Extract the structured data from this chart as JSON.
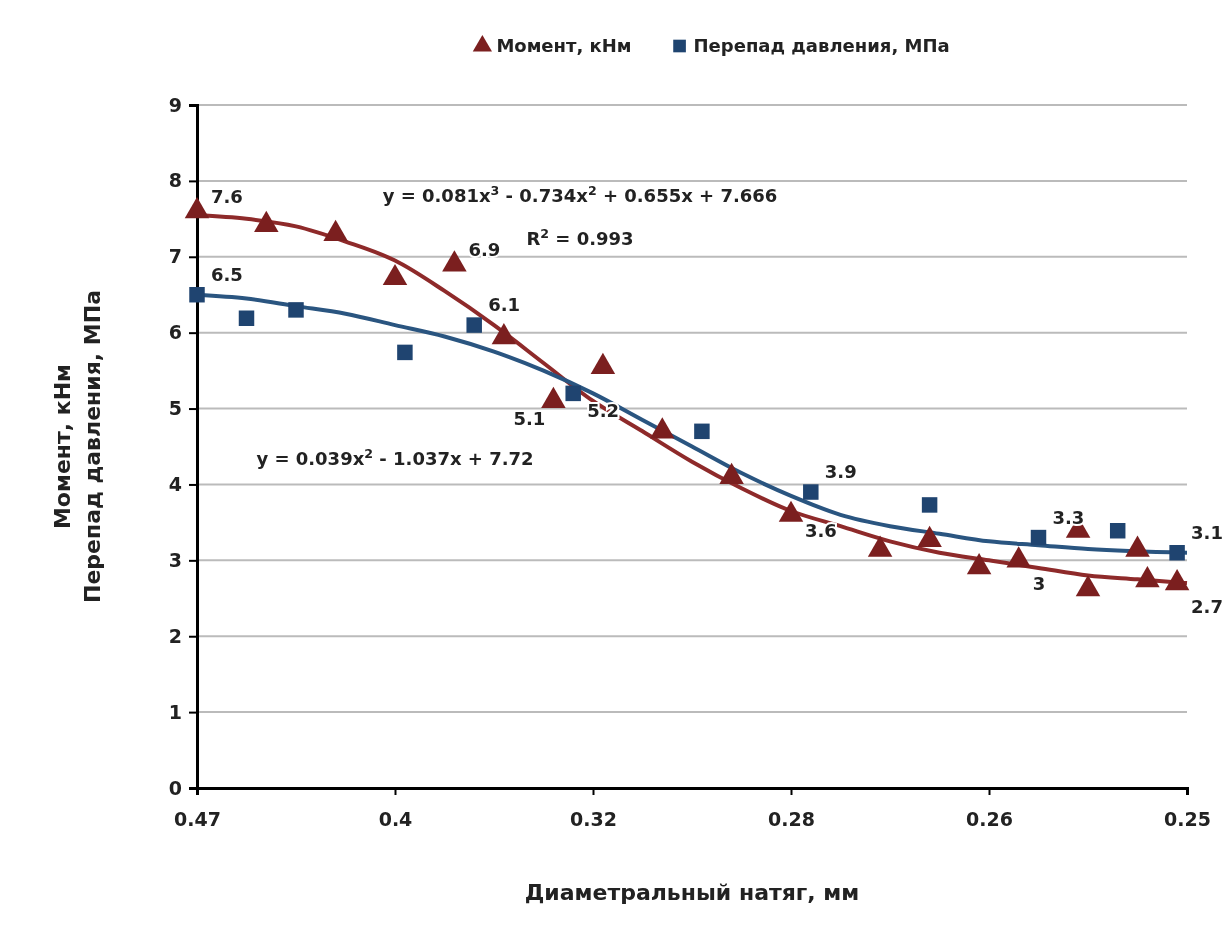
{
  "chart_data": {
    "type": "scatter",
    "categories": [
      "0.47",
      null,
      null,
      null,
      null,
      null,
      null,
      null,
      null,
      null,
      null,
      null,
      null,
      null,
      null,
      null,
      null,
      null,
      null,
      null,
      "0.4",
      null,
      null,
      null,
      null,
      null,
      null,
      null,
      null,
      null,
      null,
      null,
      null,
      null,
      null,
      null,
      null,
      null,
      null,
      null,
      "0.32",
      null,
      null,
      null,
      null,
      null,
      null,
      null,
      null,
      null,
      null,
      null,
      null,
      null,
      null,
      null,
      null,
      null,
      null,
      null,
      "0.28",
      null,
      null,
      null,
      null,
      null,
      null,
      null,
      null,
      null,
      null,
      null,
      null,
      null,
      null,
      null,
      null,
      null,
      null,
      null,
      "0.26",
      null,
      null,
      null,
      null,
      null,
      null,
      null,
      null,
      null,
      null,
      null,
      null,
      null,
      null,
      null,
      null,
      null,
      null,
      null,
      "0.25"
    ],
    "series": [
      {
        "name": "Момент, кНм",
        "type": "scatter",
        "marker": "triangle",
        "color": "#7b1f1f",
        "values": [
          7.6,
          null,
          null,
          null,
          null,
          null,
          null,
          7.42,
          null,
          null,
          null,
          null,
          null,
          null,
          7.3,
          null,
          null,
          null,
          null,
          null,
          6.72,
          null,
          null,
          null,
          null,
          null,
          6.9,
          null,
          null,
          null,
          null,
          5.94,
          null,
          null,
          null,
          null,
          5.1,
          null,
          null,
          null,
          null,
          5.55,
          null,
          null,
          null,
          null,
          null,
          4.7,
          null,
          null,
          null,
          null,
          null,
          null,
          4.1,
          null,
          null,
          null,
          null,
          null,
          3.6,
          null,
          null,
          null,
          null,
          null,
          null,
          null,
          null,
          3.14,
          null,
          null,
          null,
          null,
          3.27,
          null,
          null,
          null,
          null,
          2.91,
          null,
          null,
          null,
          3.0,
          null,
          null,
          null,
          null,
          null,
          3.39,
          2.62,
          null,
          null,
          null,
          null,
          3.14,
          2.74,
          null,
          null,
          2.7,
          null
        ],
        "value_labels": [
          "7.6",
          null,
          null,
          null,
          null,
          null,
          null,
          null,
          null,
          null,
          null,
          null,
          null,
          null,
          null,
          null,
          null,
          null,
          null,
          null,
          null,
          null,
          null,
          null,
          null,
          null,
          "6.9",
          null,
          null,
          null,
          null,
          null,
          null,
          null,
          null,
          null,
          "5.1",
          null,
          null,
          null,
          null,
          null,
          null,
          null,
          null,
          null,
          null,
          null,
          null,
          null,
          null,
          null,
          null,
          null,
          null,
          null,
          null,
          null,
          null,
          null,
          "3.6",
          null,
          null,
          null,
          null,
          null,
          null,
          null,
          null,
          null,
          null,
          null,
          null,
          null,
          null,
          null,
          null,
          null,
          null,
          null,
          null,
          null,
          null,
          "3",
          null,
          null,
          null,
          null,
          null,
          null,
          null,
          null,
          null,
          null,
          null,
          null,
          null,
          null,
          null,
          "2.7",
          null
        ]
      },
      {
        "name": "Перепад давления, МПа",
        "type": "scatter",
        "marker": "square",
        "color": "#1f4470",
        "values": [
          6.5,
          null,
          null,
          null,
          null,
          6.19,
          null,
          null,
          null,
          null,
          6.3,
          null,
          null,
          null,
          null,
          null,
          null,
          null,
          null,
          null,
          null,
          5.74,
          null,
          null,
          null,
          null,
          null,
          null,
          6.1,
          null,
          null,
          null,
          null,
          null,
          null,
          null,
          null,
          null,
          5.2,
          null,
          null,
          null,
          null,
          null,
          null,
          null,
          null,
          null,
          null,
          null,
          null,
          4.7,
          null,
          null,
          null,
          null,
          null,
          null,
          null,
          null,
          null,
          null,
          3.9,
          null,
          null,
          null,
          null,
          null,
          null,
          null,
          null,
          null,
          null,
          null,
          3.73,
          null,
          null,
          null,
          null,
          null,
          null,
          null,
          null,
          null,
          null,
          3.3,
          null,
          null,
          null,
          null,
          null,
          null,
          null,
          3.39,
          null,
          null,
          null,
          null,
          null,
          3.1,
          null
        ],
        "value_labels": [
          "6.5",
          null,
          null,
          null,
          null,
          null,
          null,
          null,
          null,
          null,
          null,
          null,
          null,
          null,
          null,
          null,
          null,
          null,
          null,
          null,
          null,
          null,
          null,
          null,
          null,
          null,
          null,
          null,
          "6.1",
          null,
          null,
          null,
          null,
          null,
          null,
          null,
          null,
          null,
          "5.2",
          null,
          null,
          null,
          null,
          null,
          null,
          null,
          null,
          null,
          null,
          null,
          null,
          null,
          null,
          null,
          null,
          null,
          null,
          null,
          null,
          null,
          null,
          null,
          "3.9",
          null,
          null,
          null,
          null,
          null,
          null,
          null,
          null,
          null,
          null,
          null,
          null,
          null,
          null,
          null,
          null,
          null,
          null,
          null,
          null,
          null,
          null,
          "3.3",
          null,
          null,
          null,
          null,
          null,
          null,
          null,
          null,
          null,
          null,
          null,
          null,
          null,
          "3.1",
          null
        ]
      },
      {
        "type": "line",
        "marker": "none",
        "color": "#8e2a2a",
        "values": [
          7.55,
          null,
          null,
          null,
          null,
          7.5,
          null,
          null,
          null,
          null,
          7.4,
          null,
          null,
          null,
          null,
          7.2,
          null,
          null,
          null,
          null,
          6.95,
          null,
          null,
          null,
          null,
          6.55,
          null,
          null,
          null,
          null,
          6.1,
          null,
          null,
          null,
          null,
          5.6,
          null,
          null,
          null,
          null,
          5.1,
          null,
          null,
          null,
          null,
          4.7,
          null,
          null,
          null,
          null,
          4.3,
          null,
          null,
          null,
          null,
          3.95,
          null,
          null,
          null,
          null,
          3.65,
          null,
          null,
          null,
          null,
          3.45,
          null,
          null,
          null,
          null,
          3.25,
          null,
          null,
          null,
          null,
          3.1,
          null,
          null,
          null,
          null,
          3.0,
          null,
          null,
          null,
          null,
          2.9,
          null,
          null,
          null,
          null,
          2.8,
          null,
          null,
          null,
          null,
          2.75,
          null,
          null,
          null,
          null,
          2.7
        ]
      },
      {
        "type": "line",
        "marker": "none",
        "color": "#2a5580",
        "values": [
          6.5,
          null,
          null,
          null,
          null,
          6.45,
          null,
          null,
          null,
          null,
          6.35,
          null,
          null,
          null,
          null,
          6.25,
          null,
          null,
          null,
          null,
          6.1,
          null,
          null,
          null,
          null,
          5.95,
          null,
          null,
          null,
          null,
          5.75,
          null,
          null,
          null,
          null,
          5.5,
          null,
          null,
          null,
          null,
          5.2,
          null,
          null,
          null,
          null,
          4.85,
          null,
          null,
          null,
          null,
          4.5,
          null,
          null,
          null,
          null,
          4.15,
          null,
          null,
          null,
          null,
          3.85,
          null,
          null,
          null,
          null,
          3.6,
          null,
          null,
          null,
          null,
          3.45,
          null,
          null,
          null,
          null,
          3.35,
          null,
          null,
          null,
          null,
          3.25,
          null,
          null,
          null,
          null,
          3.2,
          null,
          null,
          null,
          null,
          3.15,
          null,
          null,
          null,
          null,
          null,
          null,
          null,
          null,
          null,
          3.1
        ]
      }
    ],
    "ylim": [
      0,
      9
    ],
    "yticks": [
      0,
      1,
      2,
      3,
      4,
      5,
      6,
      7,
      8,
      9
    ],
    "grid": "y",
    "legend": "top",
    "xlabel": "Диаметральный натяг, мм",
    "ylabel": "Момент, кНм\nПерепад давления, МПа",
    "annotations": [
      "y = 0.081x$^{3}$ - 0.734x$^{2}$ + 0.655x + 7.666",
      "R$^{2}$ = 0.993",
      "y = 0.039x$^{2}$ - 1.037x + 7.72"
    ]
  }
}
